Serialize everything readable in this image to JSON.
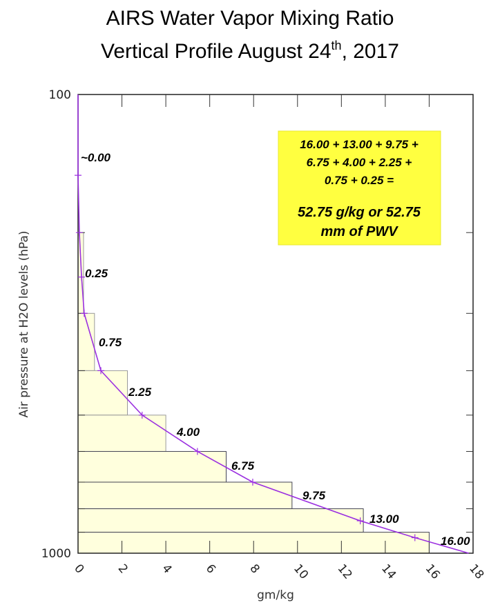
{
  "chart_data": {
    "type": "line",
    "title_line1": "AIRS Water Vapor Mixing Ratio",
    "title_line2_prefix": "Vertical Profile August 24",
    "title_sup": "th",
    "title_line2_suffix": ", 2017",
    "xlabel": "gm/kg",
    "ylabel": "Air pressure at H2O levels (hPa)",
    "xlim": [
      0,
      18
    ],
    "ylim": [
      1000,
      100
    ],
    "yscale": "log",
    "xticks": [
      "0",
      "2",
      "4",
      "6",
      "8",
      "10",
      "12",
      "14",
      "16",
      "18"
    ],
    "yticks_labeled": [
      "100",
      "1000"
    ],
    "y_minor_ticks": [
      200,
      300,
      400,
      500,
      600,
      700,
      800,
      900
    ],
    "series": [
      {
        "name": "Water vapor mixing ratio",
        "color": "#9b30e0",
        "points": [
          [
            0,
            100
          ],
          [
            0,
            150
          ],
          [
            0.06,
            200
          ],
          [
            0.16,
            250
          ],
          [
            0.28,
            300
          ],
          [
            1.04,
            400
          ],
          [
            2.92,
            500
          ],
          [
            5.44,
            600
          ],
          [
            7.96,
            700
          ],
          [
            12.86,
            850
          ],
          [
            15.35,
            925
          ],
          [
            17.8,
            1000
          ]
        ]
      }
    ],
    "layers": [
      {
        "p_top": 200,
        "p_bottom": 300,
        "value": 0.25,
        "label": "0.25"
      },
      {
        "p_top": 300,
        "p_bottom": 400,
        "value": 0.75,
        "label": "0.75"
      },
      {
        "p_top": 400,
        "p_bottom": 500,
        "value": 2.25,
        "label": "2.25"
      },
      {
        "p_top": 500,
        "p_bottom": 600,
        "value": 4.0,
        "label": "4.00"
      },
      {
        "p_top": 600,
        "p_bottom": 700,
        "value": 6.75,
        "label": "6.75"
      },
      {
        "p_top": 700,
        "p_bottom": 800,
        "value": 9.75,
        "label": "9.75"
      },
      {
        "p_top": 800,
        "p_bottom": 900,
        "value": 13.0,
        "label": "13.00"
      },
      {
        "p_top": 900,
        "p_bottom": 1000,
        "value": 16.0,
        "label": "16.00"
      }
    ],
    "top_label": "~0.00",
    "annotation": {
      "lines": [
        "16.00 + 13.00 + 9.75 +",
        "6.75 + 4.00  + 2.25  +",
        "0.75 + 0.25  ="
      ],
      "result_lines": [
        "52.75 g/kg or 52.75",
        "mm of PWV"
      ],
      "background": "#ffff40"
    },
    "bar_color": "#ffffdd",
    "grid": false
  }
}
